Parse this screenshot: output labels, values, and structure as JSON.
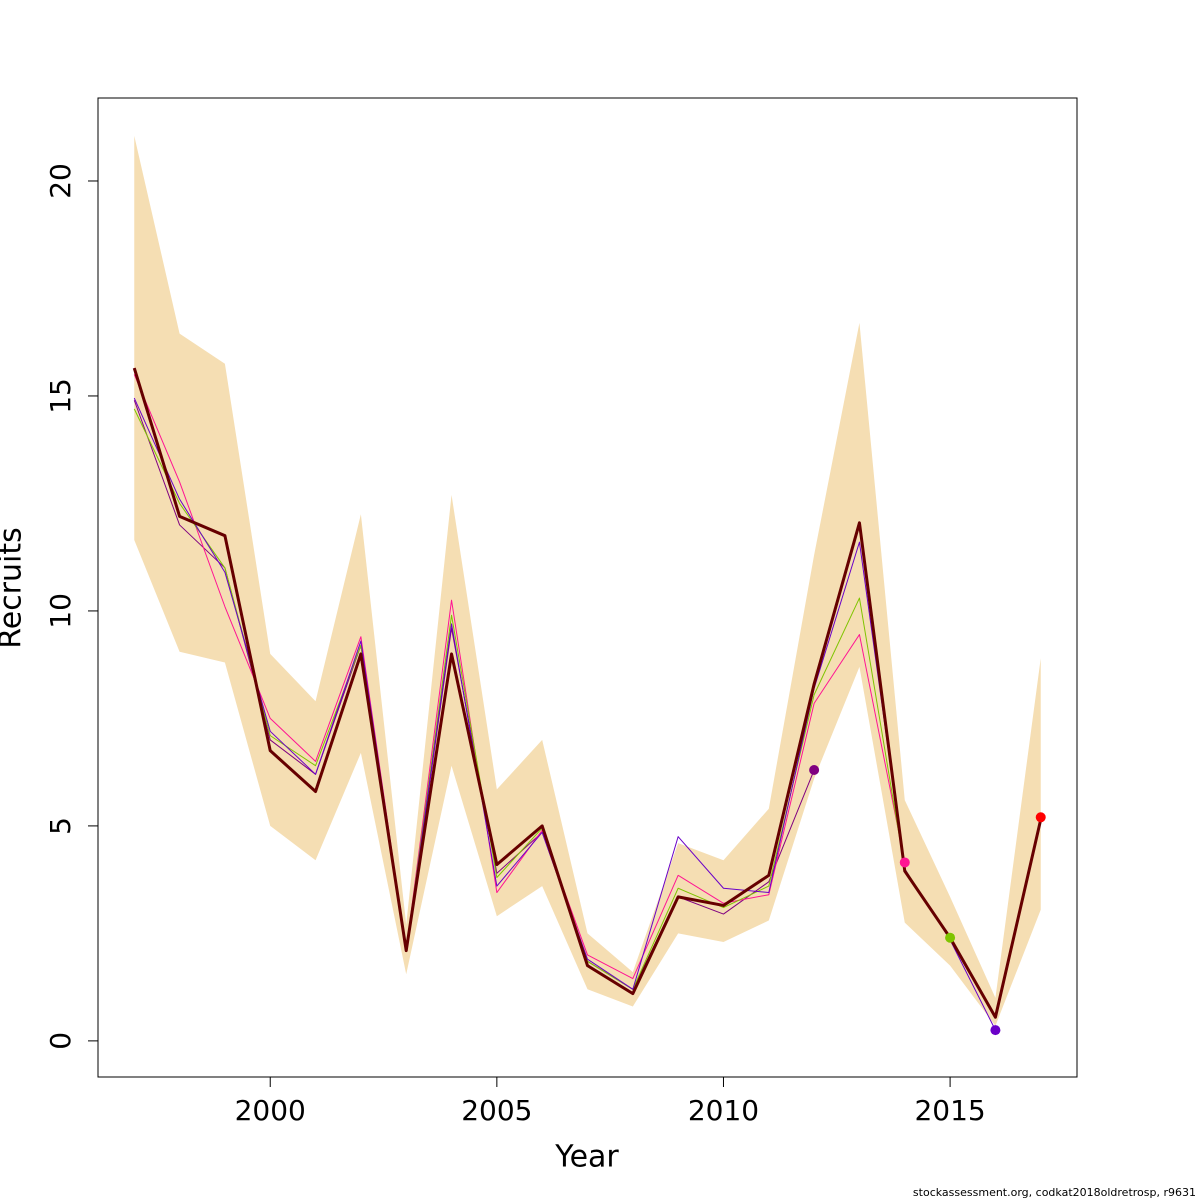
{
  "chart_data": {
    "type": "line",
    "xlabel": "Year",
    "ylabel": "Recruits",
    "footnote": "stockassessment.org, codkat2018oldretrosp, r9631",
    "x": [
      1997,
      1998,
      1999,
      2000,
      2001,
      2002,
      2003,
      2004,
      2005,
      2006,
      2007,
      2008,
      2009,
      2010,
      2011,
      2012,
      2013,
      2014,
      2015,
      2016,
      2017
    ],
    "band": {
      "color": "#f5deb3",
      "upper": [
        21.05,
        16.45,
        15.75,
        9.0,
        7.9,
        12.25,
        2.7,
        12.7,
        5.85,
        7.0,
        2.5,
        1.6,
        4.6,
        4.2,
        5.4,
        11.3,
        16.7,
        5.6,
        3.35,
        1.0,
        8.9
      ],
      "lower": [
        11.65,
        9.05,
        8.8,
        5.0,
        4.2,
        6.7,
        1.55,
        6.4,
        2.9,
        3.6,
        1.2,
        0.8,
        2.5,
        2.3,
        2.8,
        6.1,
        8.7,
        2.75,
        1.75,
        0.35,
        3.05
      ]
    },
    "series": [
      {
        "color": "#800080",
        "values": [
          14.9,
          12.0,
          11.0,
          7.0,
          6.2,
          9.2,
          2.1,
          9.6,
          3.9,
          4.85,
          1.85,
          1.2,
          3.35,
          2.95,
          3.7,
          6.3,
          null,
          null,
          null,
          null,
          null
        ]
      },
      {
        "color": "#ff1493",
        "values": [
          15.5,
          13.0,
          10.1,
          7.5,
          6.5,
          9.4,
          2.1,
          10.25,
          3.45,
          4.9,
          2.0,
          1.45,
          3.85,
          3.2,
          3.4,
          7.85,
          9.45,
          4.15,
          null,
          null,
          null
        ]
      },
      {
        "color": "#7fc400",
        "values": [
          14.7,
          12.5,
          11.0,
          7.1,
          6.4,
          9.2,
          2.1,
          9.9,
          3.8,
          4.95,
          1.85,
          1.2,
          3.55,
          3.1,
          3.6,
          8.05,
          10.3,
          4.0,
          2.4,
          null,
          null
        ]
      },
      {
        "color": "#6a00c8",
        "values": [
          14.95,
          12.6,
          10.9,
          7.2,
          6.2,
          9.3,
          2.1,
          9.7,
          3.6,
          4.85,
          1.9,
          1.2,
          4.75,
          3.55,
          3.45,
          8.2,
          11.6,
          4.0,
          2.35,
          0.25,
          null
        ]
      },
      {
        "color": "#ff0000",
        "values": [
          15.65,
          12.2,
          11.75,
          6.75,
          5.8,
          9.0,
          2.1,
          9.0,
          4.1,
          5.0,
          1.75,
          1.1,
          3.35,
          3.15,
          3.85,
          8.3,
          12.05,
          3.95,
          2.4,
          0.55,
          5.2
        ]
      }
    ],
    "main": {
      "color": "#660000",
      "values": [
        15.65,
        12.2,
        11.75,
        6.75,
        5.8,
        9.0,
        2.1,
        9.0,
        4.1,
        5.0,
        1.75,
        1.1,
        3.35,
        3.15,
        3.85,
        8.3,
        12.05,
        3.95,
        2.4,
        0.55,
        5.15
      ]
    },
    "xlim": [
      1996.2,
      2017.8
    ],
    "ylim": [
      -0.84,
      21.93
    ],
    "xticks": [
      2000,
      2005,
      2010,
      2015
    ],
    "yticks": [
      0,
      5,
      10,
      15,
      20
    ]
  }
}
